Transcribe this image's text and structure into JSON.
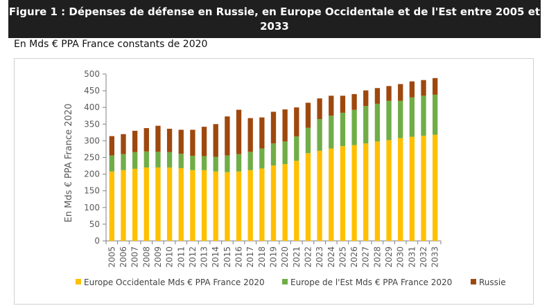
{
  "header": {
    "title": "Figure 1 : Dépenses de défense en Russie, en Europe Occidentale et de l'Est entre 2005 et 2033"
  },
  "subtitle": "En Mds € PPA France constants de 2020",
  "colors": {
    "europe_occidentale": "#ffc000",
    "europe_est": "#70ad47",
    "russie": "#9e480e",
    "axis": "#7f7f7f"
  },
  "chart_data": {
    "type": "bar",
    "stacked": true,
    "ylabel": "En Mds € PPA France 2020",
    "xlabel": "",
    "ylim": [
      0,
      500
    ],
    "yticks": [
      0,
      50,
      100,
      150,
      200,
      250,
      300,
      350,
      400,
      450,
      500
    ],
    "categories": [
      "2005",
      "2006",
      "2007",
      "2008",
      "2009",
      "2010",
      "2011",
      "2012",
      "2013",
      "2014",
      "2015",
      "2016",
      "2017",
      "2018",
      "2019",
      "2020",
      "2021",
      "2022",
      "2023",
      "2024",
      "2025",
      "2026",
      "2027",
      "2028",
      "2029",
      "2030",
      "2031",
      "2032",
      "2033"
    ],
    "series": [
      {
        "name": "Europe Occidentale Mds € PPA France 2020",
        "color": "#ffc000",
        "values": [
          208,
          212,
          216,
          220,
          220,
          220,
          218,
          212,
          212,
          208,
          206,
          208,
          212,
          217,
          226,
          230,
          240,
          263,
          270,
          277,
          284,
          287,
          292,
          298,
          302,
          308,
          312,
          315,
          318
        ]
      },
      {
        "name": "Europe de l'Est Mds € PPA France 2020",
        "color": "#70ad47",
        "values": [
          48,
          48,
          50,
          48,
          47,
          46,
          43,
          43,
          42,
          44,
          50,
          52,
          55,
          60,
          66,
          68,
          73,
          76,
          95,
          98,
          100,
          106,
          112,
          113,
          118,
          112,
          118,
          120,
          120
        ]
      },
      {
        "name": "Russie",
        "color": "#9e480e",
        "values": [
          58,
          60,
          64,
          70,
          78,
          70,
          72,
          78,
          88,
          98,
          117,
          133,
          101,
          93,
          95,
          96,
          87,
          75,
          62,
          60,
          51,
          47,
          47,
          47,
          44,
          50,
          48,
          47,
          50
        ]
      }
    ],
    "legend_position": "bottom",
    "grid": false
  }
}
